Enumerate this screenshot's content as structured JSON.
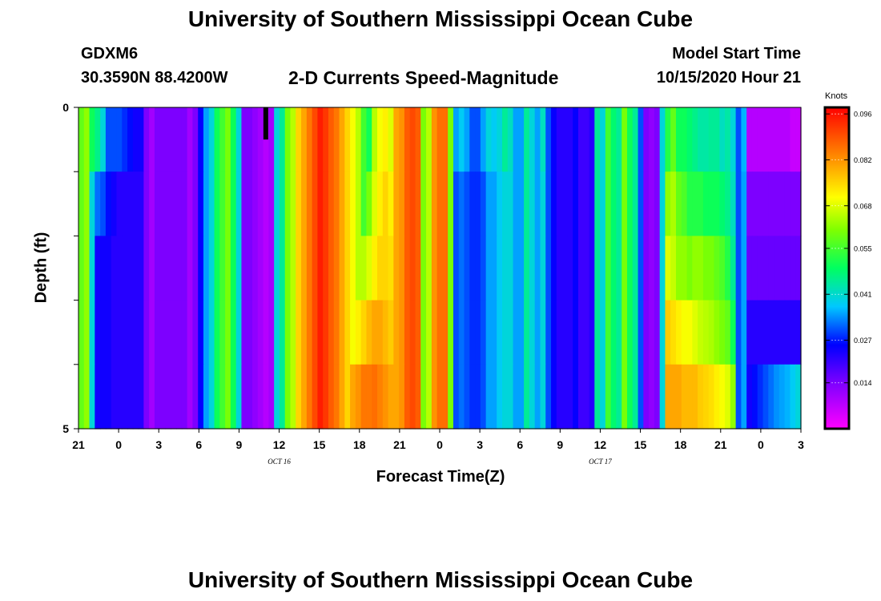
{
  "header": {
    "title": "University of Southern Mississippi Ocean Cube",
    "station": "GDXM6",
    "latlon": "30.3590N 88.4200W",
    "subtitle": "2-D Currents Speed-Magnitude",
    "start_label": "Model Start Time",
    "start_value": "10/15/2020 Hour 21"
  },
  "footer": {
    "title": "University of Southern Mississippi Ocean Cube"
  },
  "chart_data": {
    "type": "heatmap",
    "title": "2-D Currents Speed-Magnitude",
    "xlabel": "Forecast Time(Z)",
    "ylabel": "Depth (ft)",
    "x_hours": [
      0,
      54
    ],
    "xtick_labels": [
      "21",
      "0",
      "3",
      "6",
      "9",
      "12",
      "15",
      "18",
      "21",
      "0",
      "3",
      "6",
      "9",
      "12",
      "15",
      "18",
      "21",
      "0",
      "3"
    ],
    "date_labels": [
      {
        "text": "OCT 16",
        "hour": 15
      },
      {
        "text": "OCT 17",
        "hour": 39
      }
    ],
    "ylim": [
      0,
      5
    ],
    "ytick_labels": [
      "0",
      "5"
    ],
    "colorbar": {
      "unit": "Knots",
      "min": 0.0,
      "max": 0.098,
      "ticks": [
        "0.096",
        "0.082",
        "0.068",
        "0.055",
        "0.041",
        "0.027",
        "0.014"
      ],
      "tick_values": [
        0.096,
        0.082,
        0.068,
        0.055,
        0.041,
        0.027,
        0.014
      ]
    },
    "marker": {
      "hour": 14,
      "depth_from": 0,
      "depth_to": 0.5
    },
    "depth_levels": [
      0,
      1,
      2,
      3,
      4,
      5
    ],
    "speeds_knots": [
      [
        0.058,
        0.062,
        0.05,
        0.046,
        0.04,
        0.03,
        0.03,
        0.03,
        0.028,
        0.026,
        0.024,
        0.024,
        0.014,
        0.01,
        0.014,
        0.014,
        0.014,
        0.014,
        0.014,
        0.014,
        0.01,
        0.014,
        0.025,
        0.035,
        0.04,
        0.05,
        0.055,
        0.06,
        0.05,
        0.04,
        0.014,
        0.014,
        0.012,
        0.01,
        0.008,
        0.01,
        0.04,
        0.045,
        0.06,
        0.065,
        0.075,
        0.08,
        0.085,
        0.09,
        0.095,
        0.092,
        0.088,
        0.085,
        0.08,
        0.075,
        0.07,
        0.065,
        0.055,
        0.05,
        0.065,
        0.07,
        0.072,
        0.068,
        0.08,
        0.082,
        0.088,
        0.09,
        0.088,
        0.06,
        0.065,
        0.082,
        0.086,
        0.086,
        0.06,
        0.035,
        0.038,
        0.035,
        0.03,
        0.03,
        0.035,
        0.04,
        0.038,
        0.04,
        0.045,
        0.042,
        0.035,
        0.035,
        0.045,
        0.04,
        0.035,
        0.042,
        0.03,
        0.025,
        0.022,
        0.022,
        0.022,
        0.025,
        0.02,
        0.02,
        0.022,
        0.045,
        0.04,
        0.055,
        0.048,
        0.045,
        0.06,
        0.05,
        0.045,
        0.03,
        0.014,
        0.012,
        0.014,
        0.04,
        0.052,
        0.058,
        0.05,
        0.05,
        0.048,
        0.046,
        0.044,
        0.044,
        0.045,
        0.045,
        0.042,
        0.044,
        0.04,
        0.03,
        0.036,
        0.008,
        0.008,
        0.008,
        0.008,
        0.008,
        0.008,
        0.008,
        0.008,
        0.006,
        0.006
      ],
      [
        0.058,
        0.062,
        0.04,
        0.032,
        0.03,
        0.026,
        0.024,
        0.022,
        0.022,
        0.022,
        0.022,
        0.022,
        0.014,
        0.01,
        0.014,
        0.014,
        0.014,
        0.014,
        0.014,
        0.014,
        0.01,
        0.014,
        0.025,
        0.035,
        0.04,
        0.05,
        0.055,
        0.06,
        0.05,
        0.04,
        0.014,
        0.014,
        0.012,
        0.01,
        0.008,
        0.01,
        0.04,
        0.045,
        0.06,
        0.065,
        0.075,
        0.08,
        0.085,
        0.09,
        0.095,
        0.092,
        0.088,
        0.085,
        0.08,
        0.075,
        0.07,
        0.065,
        0.055,
        0.06,
        0.068,
        0.072,
        0.075,
        0.072,
        0.08,
        0.082,
        0.088,
        0.09,
        0.088,
        0.06,
        0.065,
        0.082,
        0.086,
        0.086,
        0.06,
        0.03,
        0.032,
        0.03,
        0.028,
        0.028,
        0.03,
        0.035,
        0.035,
        0.038,
        0.04,
        0.04,
        0.035,
        0.035,
        0.045,
        0.04,
        0.035,
        0.04,
        0.03,
        0.025,
        0.022,
        0.022,
        0.022,
        0.025,
        0.02,
        0.02,
        0.022,
        0.045,
        0.04,
        0.055,
        0.048,
        0.045,
        0.06,
        0.05,
        0.045,
        0.03,
        0.014,
        0.012,
        0.014,
        0.04,
        0.062,
        0.064,
        0.058,
        0.056,
        0.052,
        0.052,
        0.052,
        0.05,
        0.05,
        0.05,
        0.048,
        0.046,
        0.042,
        0.03,
        0.035,
        0.014,
        0.014,
        0.014,
        0.014,
        0.014,
        0.014,
        0.014,
        0.014,
        0.014,
        0.014
      ],
      [
        0.058,
        0.062,
        0.04,
        0.024,
        0.024,
        0.024,
        0.022,
        0.022,
        0.022,
        0.022,
        0.022,
        0.022,
        0.014,
        0.01,
        0.014,
        0.014,
        0.014,
        0.014,
        0.014,
        0.014,
        0.01,
        0.014,
        0.025,
        0.035,
        0.04,
        0.05,
        0.055,
        0.06,
        0.05,
        0.04,
        0.014,
        0.014,
        0.012,
        0.01,
        0.008,
        0.01,
        0.04,
        0.045,
        0.06,
        0.065,
        0.075,
        0.08,
        0.085,
        0.09,
        0.095,
        0.092,
        0.088,
        0.085,
        0.08,
        0.075,
        0.07,
        0.065,
        0.065,
        0.068,
        0.072,
        0.075,
        0.075,
        0.074,
        0.08,
        0.082,
        0.088,
        0.09,
        0.088,
        0.06,
        0.065,
        0.082,
        0.086,
        0.086,
        0.06,
        0.03,
        0.032,
        0.03,
        0.028,
        0.028,
        0.03,
        0.035,
        0.035,
        0.038,
        0.04,
        0.04,
        0.035,
        0.035,
        0.045,
        0.04,
        0.035,
        0.04,
        0.03,
        0.025,
        0.022,
        0.022,
        0.022,
        0.025,
        0.02,
        0.02,
        0.022,
        0.045,
        0.04,
        0.055,
        0.048,
        0.045,
        0.06,
        0.05,
        0.045,
        0.03,
        0.014,
        0.012,
        0.014,
        0.04,
        0.068,
        0.066,
        0.062,
        0.062,
        0.06,
        0.062,
        0.062,
        0.06,
        0.06,
        0.058,
        0.056,
        0.052,
        0.045,
        0.03,
        0.035,
        0.016,
        0.016,
        0.016,
        0.016,
        0.016,
        0.016,
        0.016,
        0.016,
        0.016,
        0.016
      ],
      [
        0.058,
        0.062,
        0.04,
        0.024,
        0.024,
        0.024,
        0.022,
        0.022,
        0.022,
        0.022,
        0.022,
        0.022,
        0.014,
        0.01,
        0.014,
        0.014,
        0.014,
        0.014,
        0.014,
        0.014,
        0.01,
        0.014,
        0.025,
        0.035,
        0.04,
        0.05,
        0.055,
        0.06,
        0.05,
        0.04,
        0.014,
        0.014,
        0.012,
        0.01,
        0.008,
        0.01,
        0.04,
        0.045,
        0.06,
        0.065,
        0.075,
        0.08,
        0.085,
        0.09,
        0.095,
        0.092,
        0.088,
        0.085,
        0.08,
        0.075,
        0.07,
        0.072,
        0.075,
        0.078,
        0.08,
        0.08,
        0.078,
        0.076,
        0.08,
        0.082,
        0.088,
        0.09,
        0.088,
        0.06,
        0.065,
        0.082,
        0.086,
        0.086,
        0.06,
        0.03,
        0.032,
        0.03,
        0.028,
        0.028,
        0.03,
        0.035,
        0.035,
        0.038,
        0.04,
        0.04,
        0.035,
        0.035,
        0.045,
        0.04,
        0.035,
        0.04,
        0.03,
        0.025,
        0.022,
        0.022,
        0.022,
        0.025,
        0.02,
        0.02,
        0.022,
        0.045,
        0.04,
        0.055,
        0.048,
        0.045,
        0.06,
        0.05,
        0.045,
        0.03,
        0.014,
        0.012,
        0.014,
        0.04,
        0.076,
        0.074,
        0.072,
        0.07,
        0.07,
        0.068,
        0.066,
        0.065,
        0.064,
        0.062,
        0.06,
        0.058,
        0.05,
        0.03,
        0.035,
        0.022,
        0.022,
        0.022,
        0.022,
        0.022,
        0.022,
        0.022,
        0.022,
        0.022,
        0.022
      ],
      [
        0.058,
        0.062,
        0.04,
        0.024,
        0.024,
        0.024,
        0.022,
        0.022,
        0.022,
        0.022,
        0.022,
        0.022,
        0.014,
        0.01,
        0.014,
        0.014,
        0.014,
        0.014,
        0.014,
        0.014,
        0.01,
        0.014,
        0.025,
        0.035,
        0.04,
        0.05,
        0.055,
        0.06,
        0.05,
        0.04,
        0.014,
        0.014,
        0.012,
        0.01,
        0.008,
        0.01,
        0.04,
        0.045,
        0.06,
        0.065,
        0.075,
        0.08,
        0.085,
        0.09,
        0.095,
        0.092,
        0.088,
        0.085,
        0.08,
        0.075,
        0.08,
        0.082,
        0.085,
        0.085,
        0.086,
        0.084,
        0.082,
        0.08,
        0.08,
        0.082,
        0.088,
        0.09,
        0.088,
        0.06,
        0.065,
        0.082,
        0.086,
        0.086,
        0.06,
        0.03,
        0.032,
        0.03,
        0.028,
        0.028,
        0.03,
        0.035,
        0.035,
        0.038,
        0.04,
        0.04,
        0.035,
        0.035,
        0.045,
        0.04,
        0.035,
        0.04,
        0.03,
        0.025,
        0.022,
        0.022,
        0.022,
        0.025,
        0.02,
        0.02,
        0.022,
        0.045,
        0.04,
        0.055,
        0.048,
        0.045,
        0.06,
        0.05,
        0.045,
        0.03,
        0.014,
        0.012,
        0.014,
        0.04,
        0.08,
        0.08,
        0.08,
        0.078,
        0.078,
        0.078,
        0.076,
        0.075,
        0.074,
        0.072,
        0.07,
        0.068,
        0.062,
        0.03,
        0.035,
        0.024,
        0.026,
        0.028,
        0.03,
        0.032,
        0.034,
        0.035,
        0.036,
        0.038,
        0.04
      ]
    ]
  }
}
